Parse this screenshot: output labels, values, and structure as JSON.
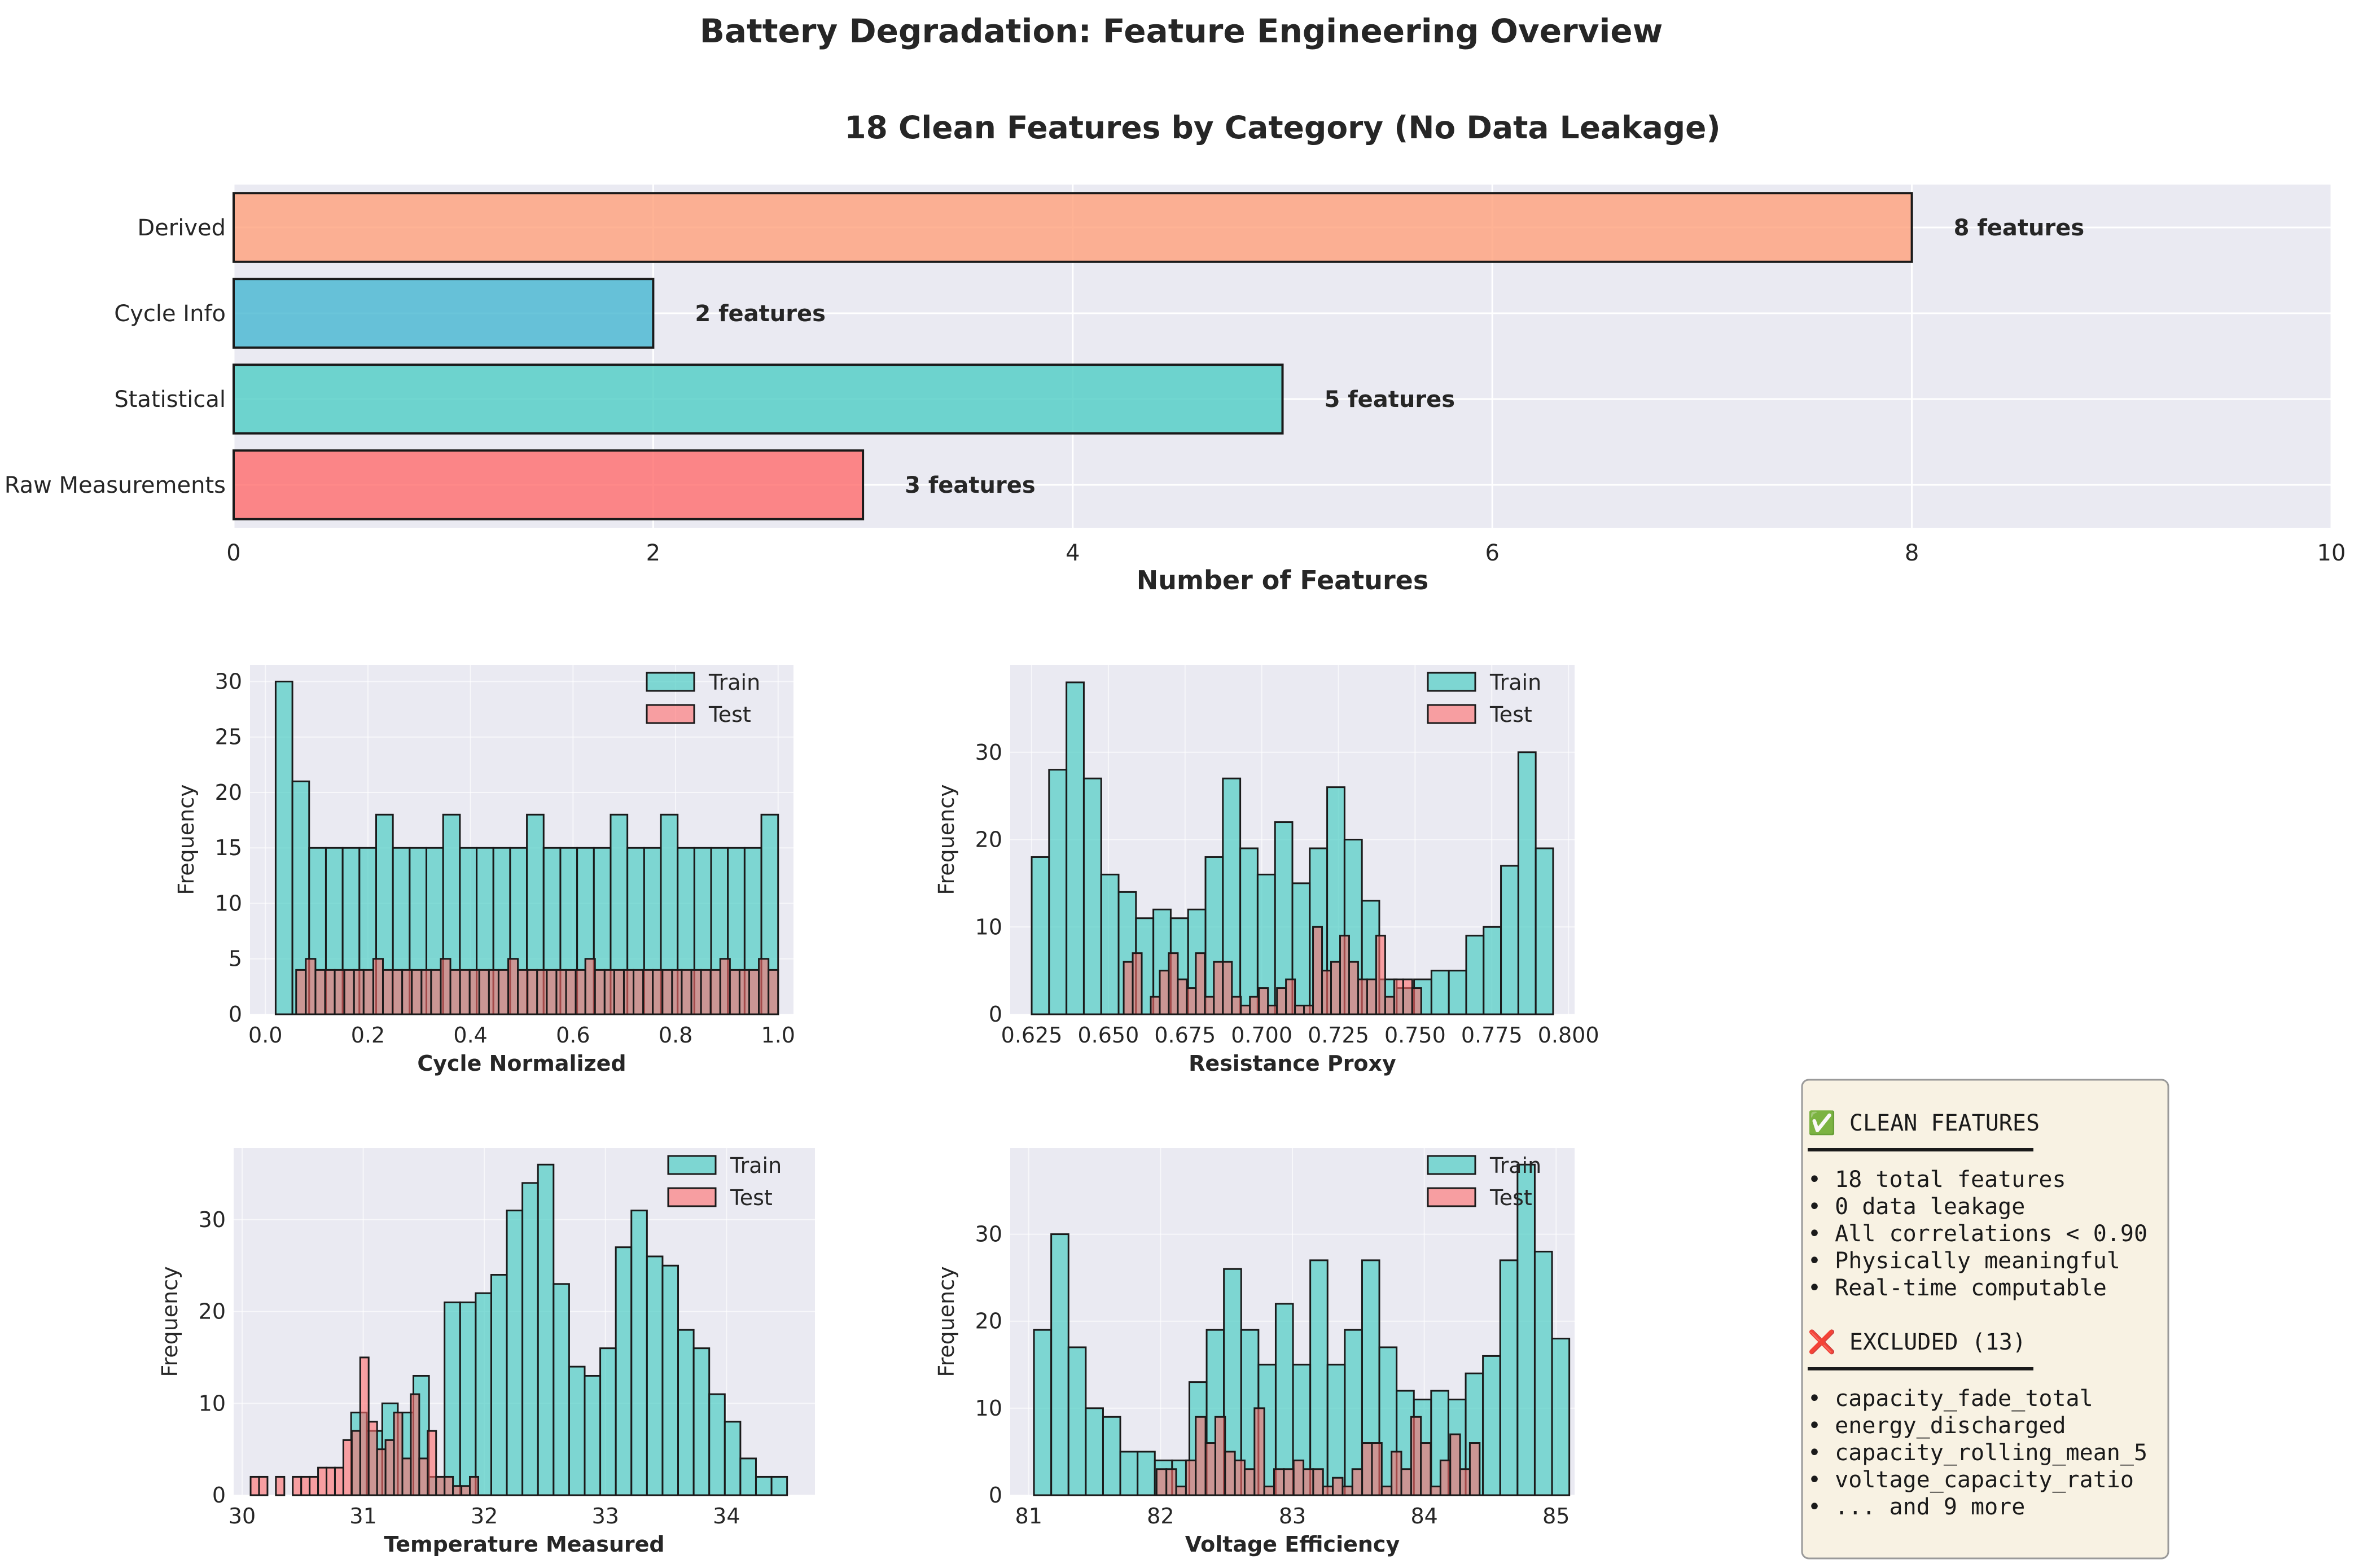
{
  "suptitle": "Battery Degradation: Feature Engineering Overview",
  "colors": {
    "panel_bg": "#EAEAF2",
    "grid": "#ffffff",
    "train": "#4ECDC4",
    "test": "#FF6B6B",
    "bar_raw": "#FF6B6B",
    "bar_statistical": "#4ECDC4",
    "bar_cycle": "#45B7D1",
    "bar_derived": "#FFA07A",
    "info_box_bg": "#F8F2E3"
  },
  "chart_data": [
    {
      "type": "bar",
      "orientation": "horizontal",
      "title": "18 Clean Features by Category (No Data Leakage)",
      "xlabel": "Number of Features",
      "ylabel": "",
      "categories": [
        "Raw Measurements",
        "Statistical",
        "Cycle Info",
        "Derived"
      ],
      "values": [
        3,
        5,
        2,
        8
      ],
      "data_labels": [
        "3 features",
        "5 features",
        "2 features",
        "8 features"
      ],
      "xlim": [
        0,
        10
      ],
      "xticks": [
        0,
        2,
        4,
        6,
        8,
        10
      ],
      "grid": true
    },
    {
      "type": "bar",
      "subtype": "histogram",
      "xlabel": "Cycle Normalized",
      "ylabel": "Frequency",
      "xlim": [
        -0.03,
        1.03
      ],
      "ylim": [
        0,
        31.5
      ],
      "xticks": [
        "0.0",
        "0.2",
        "0.4",
        "0.6",
        "0.8",
        "1.0"
      ],
      "yticks": [
        0,
        5,
        10,
        15,
        20,
        25,
        30
      ],
      "legend": "top-right",
      "series": [
        {
          "name": "Train",
          "range": [
            0.02,
            1.0
          ],
          "values": [
            30,
            21,
            15,
            15,
            15,
            15,
            18,
            15,
            15,
            15,
            18,
            15,
            15,
            15,
            15,
            18,
            15,
            15,
            15,
            15,
            18,
            15,
            15,
            18,
            15,
            15,
            15,
            15,
            15,
            18
          ]
        },
        {
          "name": "Test",
          "range": [
            0.06,
            1.0
          ],
          "values": [
            4,
            5,
            4,
            4,
            4,
            4,
            4,
            4,
            5,
            4,
            4,
            4,
            4,
            4,
            4,
            5,
            4,
            4,
            4,
            4,
            4,
            4,
            5,
            4,
            4,
            4,
            4,
            4,
            4,
            4,
            5,
            4,
            4,
            4,
            4,
            4,
            4,
            4,
            4,
            4,
            4,
            4,
            4,
            4,
            5,
            4,
            4,
            4,
            5,
            4
          ]
        }
      ]
    },
    {
      "type": "bar",
      "subtype": "histogram",
      "xlabel": "Resistance Proxy",
      "ylabel": "Frequency",
      "xlim": [
        0.618,
        0.802
      ],
      "ylim": [
        0,
        40
      ],
      "xticks": [
        "0.625",
        "0.650",
        "0.675",
        "0.700",
        "0.725",
        "0.750",
        "0.775",
        "0.800"
      ],
      "yticks": [
        0,
        10,
        20,
        30
      ],
      "legend": "top-right",
      "series": [
        {
          "name": "Train",
          "range": [
            0.625,
            0.795
          ],
          "values": [
            18,
            28,
            38,
            27,
            16,
            14,
            11,
            12,
            11,
            12,
            18,
            27,
            19,
            16,
            22,
            15,
            19,
            26,
            20,
            13,
            4,
            3,
            4,
            5,
            5,
            9,
            10,
            17,
            30,
            19
          ]
        },
        {
          "name": "Test",
          "range": [
            0.655,
            0.752
          ],
          "values": [
            6,
            7,
            0,
            2,
            5,
            7,
            4,
            3,
            7,
            2,
            6,
            6,
            2,
            1,
            2,
            3,
            1,
            3,
            4,
            1,
            1,
            10,
            5,
            6,
            9,
            6,
            4,
            4,
            9,
            2,
            4,
            4,
            3
          ]
        }
      ]
    },
    {
      "type": "bar",
      "subtype": "histogram",
      "xlabel": "Temperature Measured",
      "ylabel": "Frequency",
      "xlim": [
        29.93,
        34.73
      ],
      "ylim": [
        0,
        37.8
      ],
      "xticks": [
        "30",
        "31",
        "32",
        "33",
        "34"
      ],
      "yticks": [
        0,
        10,
        20,
        30
      ],
      "legend": "top-right",
      "series": [
        {
          "name": "Train",
          "range": [
            30.9,
            34.5
          ],
          "values": [
            9,
            7,
            10,
            9,
            13,
            2,
            21,
            21,
            22,
            24,
            31,
            34,
            36,
            23,
            14,
            13,
            16,
            27,
            31,
            26,
            25,
            18,
            16,
            11,
            8,
            4,
            2,
            2
          ]
        },
        {
          "name": "Test",
          "range": [
            30.07,
            31.95
          ],
          "values": [
            2,
            2,
            0,
            2,
            0,
            2,
            2,
            2,
            3,
            3,
            3,
            6,
            7,
            15,
            8,
            5,
            6,
            9,
            4,
            11,
            4,
            7,
            2,
            2,
            1,
            1,
            2
          ]
        }
      ]
    },
    {
      "type": "bar",
      "subtype": "histogram",
      "xlabel": "Voltage Efficiency",
      "ylabel": "Frequency",
      "xlim": [
        80.86,
        85.14
      ],
      "ylim": [
        0,
        39.9
      ],
      "xticks": [
        "81",
        "82",
        "83",
        "84",
        "85"
      ],
      "yticks": [
        0,
        10,
        20,
        30
      ],
      "legend": "top-right",
      "series": [
        {
          "name": "Train",
          "range": [
            81.04,
            85.1
          ],
          "values": [
            19,
            30,
            17,
            10,
            9,
            5,
            5,
            4,
            4,
            13,
            19,
            26,
            19,
            15,
            22,
            15,
            27,
            15,
            19,
            27,
            17,
            12,
            11,
            12,
            11,
            14,
            16,
            27,
            38,
            28,
            18
          ]
        },
        {
          "name": "Test",
          "range": [
            81.97,
            84.42
          ],
          "values": [
            3,
            3,
            1,
            4,
            9,
            6,
            9,
            5,
            4,
            3,
            10,
            1,
            3,
            3,
            4,
            3,
            3,
            1,
            2,
            1,
            3,
            6,
            6,
            1,
            5,
            3,
            9,
            6,
            1,
            4,
            7,
            3,
            6
          ]
        }
      ]
    }
  ],
  "info_box": {
    "clean_header": "✅ CLEAN FEATURES",
    "clean_items": [
      "• 18 total features",
      "• 0 data leakage",
      "• All correlations < 0.90",
      "• Physically meaningful",
      "• Real-time computable"
    ],
    "excluded_header": "❌ EXCLUDED (13)",
    "excluded_items": [
      "• capacity_fade_total",
      "• energy_discharged",
      "• capacity_rolling_mean_5",
      "• voltage_capacity_ratio",
      "• ... and 9 more"
    ]
  }
}
